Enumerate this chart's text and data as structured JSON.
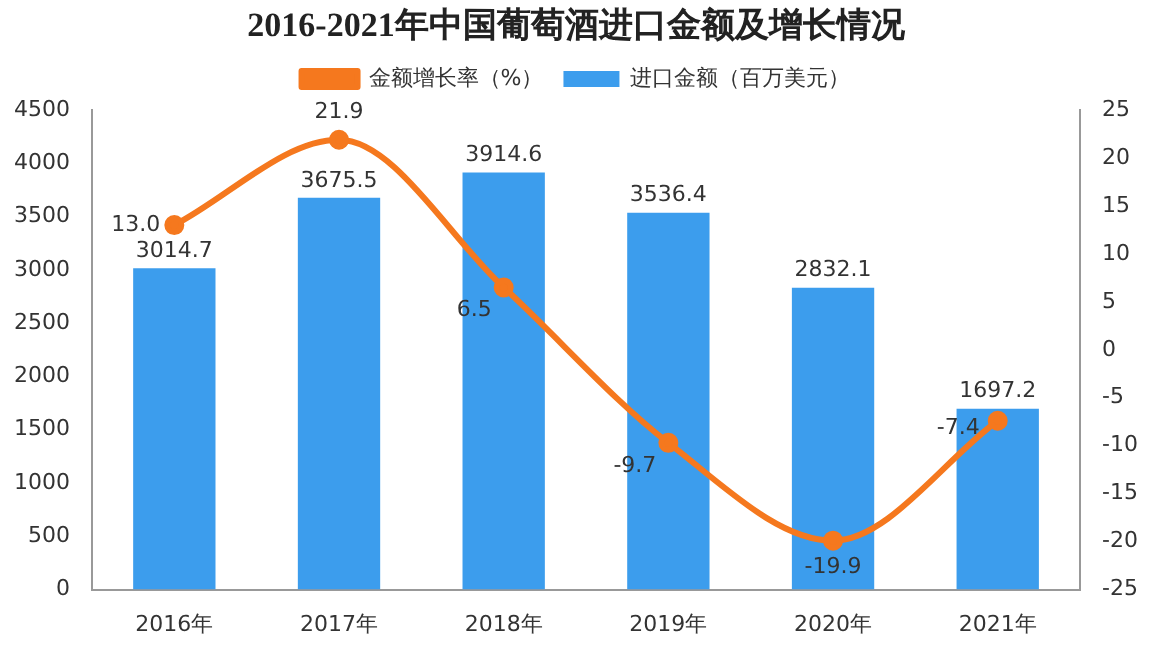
{
  "chart_data": {
    "type": "bar",
    "title": "2016-2021年中国葡萄酒进口金额及增长情况",
    "categories": [
      "2016年",
      "2017年",
      "2018年",
      "2019年",
      "2020年",
      "2021年"
    ],
    "series": [
      {
        "name": "进口金额（百万美元）",
        "color": "#3c9ded",
        "values": [
          3014.7,
          3675.5,
          3914.6,
          3536.4,
          2832.1,
          1697.2
        ],
        "value_labels": [
          "3014.7",
          "3675.5",
          "3914.6",
          "3536.4",
          "2832.1",
          "1697.2"
        ]
      },
      {
        "name": "金额增长率（%）",
        "type": "line",
        "axis": "y2",
        "color": "#f5781e",
        "values": [
          13.0,
          21.9,
          6.5,
          -9.7,
          -19.9,
          -7.4
        ],
        "value_labels": [
          "13.0",
          "21.9",
          "6.5",
          "-9.7",
          "-19.9",
          "-7.4"
        ]
      }
    ],
    "ylim": [
      0,
      4500
    ],
    "yticks": [
      0,
      500,
      1000,
      1500,
      2000,
      2500,
      3000,
      3500,
      4000,
      4500
    ],
    "y2lim": [
      -25,
      25
    ],
    "y2ticks": [
      -25,
      -20,
      -15,
      -10,
      -5,
      0,
      5,
      10,
      15,
      20,
      25
    ],
    "grid": false,
    "legend": "top",
    "marker": "circle"
  }
}
